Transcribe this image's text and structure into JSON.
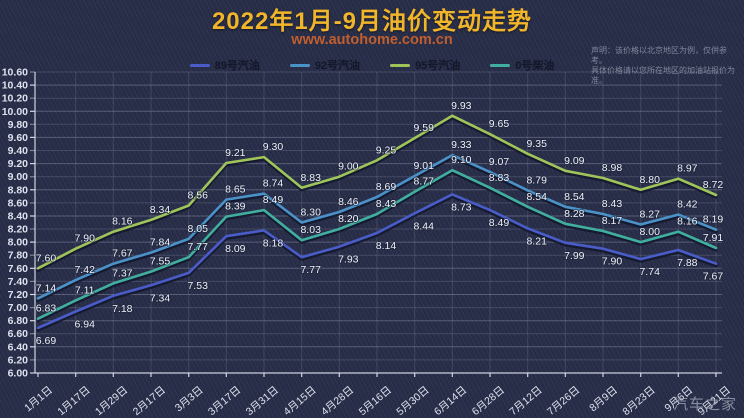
{
  "header": {
    "title": "2022年1月-9月油价变动走势",
    "subtitle": "www.autohome.com.cn",
    "disclaimer_line1": "声明：该价格以北京地区为例，仅供参考。",
    "disclaimer_line2": "具体价格请以您所在地区的加油站报价为准。"
  },
  "watermark": "汽车之家",
  "colors": {
    "background": "#262c47",
    "title": "#f1b52a",
    "subtitle": "#c05e2e",
    "axis_text": "#dde2ee",
    "data_label_text": "#edf1f8",
    "grid": "#c3cade"
  },
  "chart_data": {
    "type": "line",
    "title": "2022年1月-9月油价变动走势",
    "xlabel": "",
    "ylabel": "",
    "ylim": [
      6.0,
      10.6
    ],
    "ytick_step": 0.2,
    "grid": true,
    "legend_position": "top",
    "categories": [
      "1月1日",
      "1月17日",
      "1月29日",
      "2月17日",
      "3月3日",
      "3月17日",
      "3月31日",
      "4月15日",
      "4月28日",
      "5月16日",
      "5月30日",
      "6月14日",
      "6月28日",
      "7月12日",
      "7月26日",
      "8月9日",
      "8月23日",
      "9月6日",
      "9月21日"
    ],
    "series": [
      {
        "name": "89号汽油",
        "color": "#4a5cc8",
        "values": [
          6.69,
          6.94,
          7.18,
          7.34,
          7.53,
          8.09,
          8.18,
          7.77,
          7.93,
          8.14,
          8.44,
          8.73,
          8.49,
          8.21,
          7.99,
          7.9,
          7.74,
          7.88,
          7.67
        ]
      },
      {
        "name": "92号汽油",
        "color": "#4b92c8",
        "values": [
          7.14,
          7.42,
          7.67,
          7.84,
          8.05,
          8.65,
          8.74,
          8.3,
          8.46,
          8.69,
          9.01,
          9.33,
          9.07,
          8.79,
          8.54,
          8.43,
          8.27,
          8.42,
          8.19
        ]
      },
      {
        "name": "95号汽油",
        "color": "#9fc45a",
        "values": [
          7.6,
          7.9,
          8.16,
          8.34,
          8.56,
          9.21,
          9.3,
          8.83,
          9.0,
          9.25,
          9.59,
          9.93,
          9.65,
          9.35,
          9.09,
          8.98,
          8.8,
          8.97,
          8.72
        ]
      },
      {
        "name": "0号柴油",
        "color": "#41af9f",
        "values": [
          6.83,
          7.11,
          7.37,
          7.55,
          7.77,
          8.39,
          8.49,
          8.03,
          8.2,
          8.43,
          8.77,
          9.1,
          8.83,
          8.54,
          8.28,
          8.17,
          8.0,
          8.16,
          7.91
        ]
      }
    ]
  }
}
